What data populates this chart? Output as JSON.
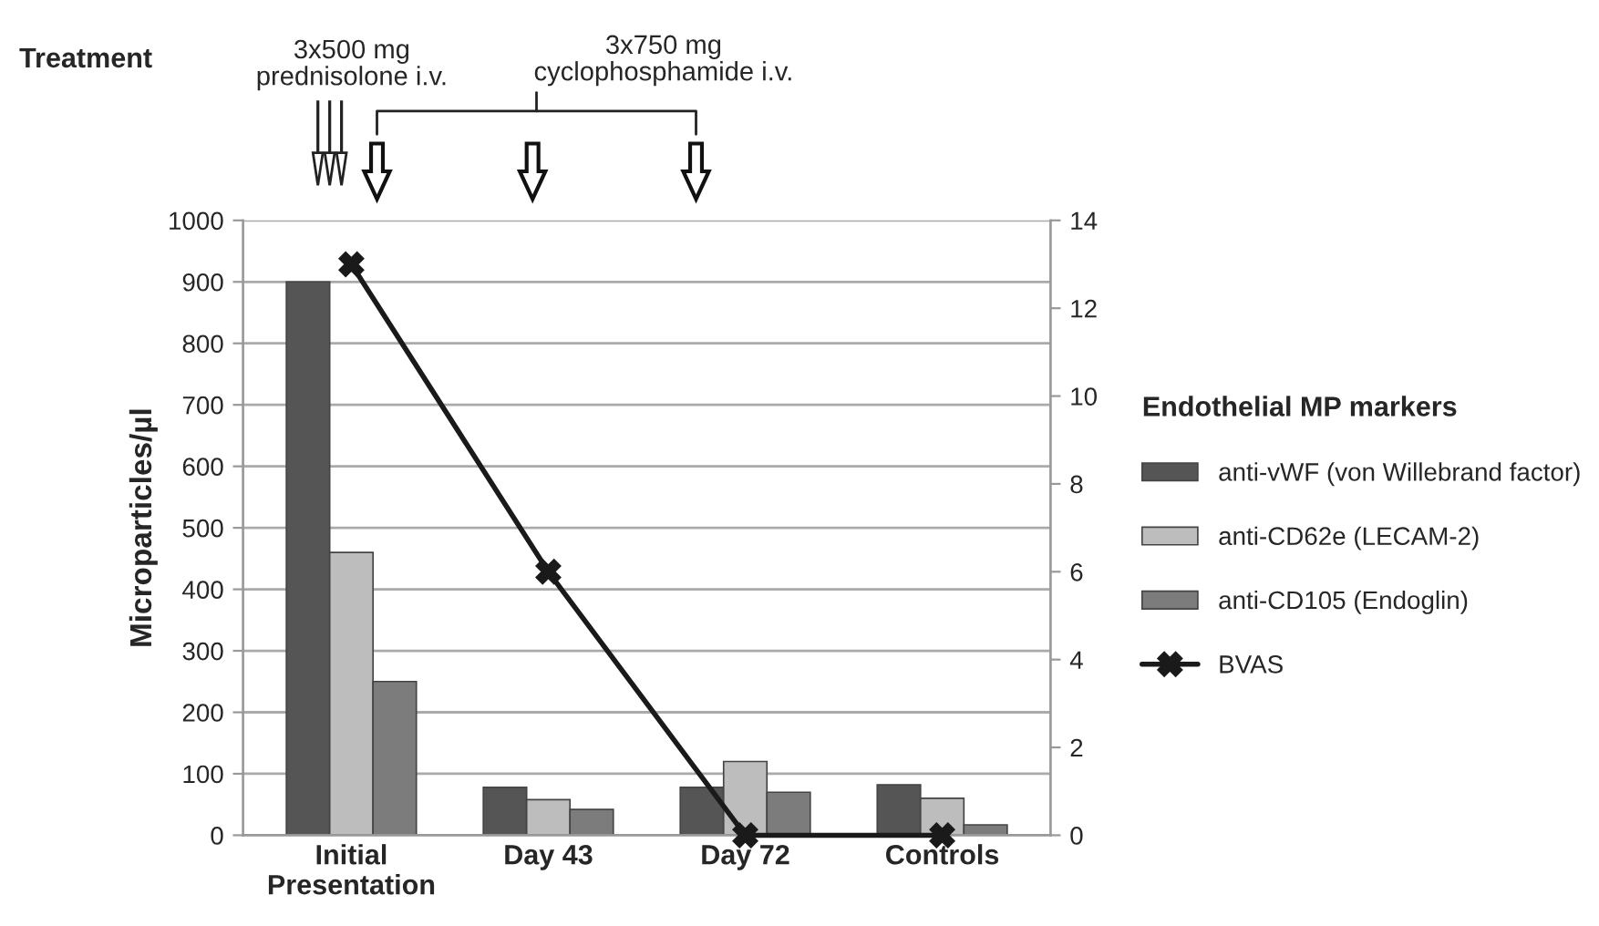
{
  "chart_data": {
    "type": "bar",
    "categories": [
      "Initial\nPresentation",
      "Day 43",
      "Day 72",
      "Controls"
    ],
    "series": [
      {
        "name": "anti-vWF (von Willebrand factor)",
        "color": "#555555",
        "values": [
          900,
          78,
          78,
          82
        ]
      },
      {
        "name": "anti-CD62e (LECAM-2)",
        "color": "#bdbdbd",
        "values": [
          460,
          58,
          120,
          60
        ]
      },
      {
        "name": "anti-CD105 (Endoglin)",
        "color": "#7c7c7c",
        "values": [
          250,
          42,
          70,
          17
        ]
      },
      {
        "name": "BVAS",
        "type": "line",
        "axis": "y2",
        "color": "#1a1a1a",
        "marker": "cross",
        "values": [
          13,
          6,
          0,
          0
        ]
      }
    ],
    "ylabel": "Microparticles/µl",
    "legend_title": "Endothelial MP markers",
    "ylim": [
      0,
      1000
    ],
    "yticks": [
      0,
      100,
      200,
      300,
      400,
      500,
      600,
      700,
      800,
      900,
      1000
    ],
    "y2lim": [
      0,
      14
    ],
    "y2ticks": [
      0,
      2,
      4,
      6,
      8,
      10,
      12,
      14
    ],
    "grid": "y",
    "legend": "right",
    "annotations": [
      "Treatment",
      "3x500 mg\nprednisolone i.v.",
      "3x750 mg\ncyclophosphamide i.v."
    ]
  }
}
